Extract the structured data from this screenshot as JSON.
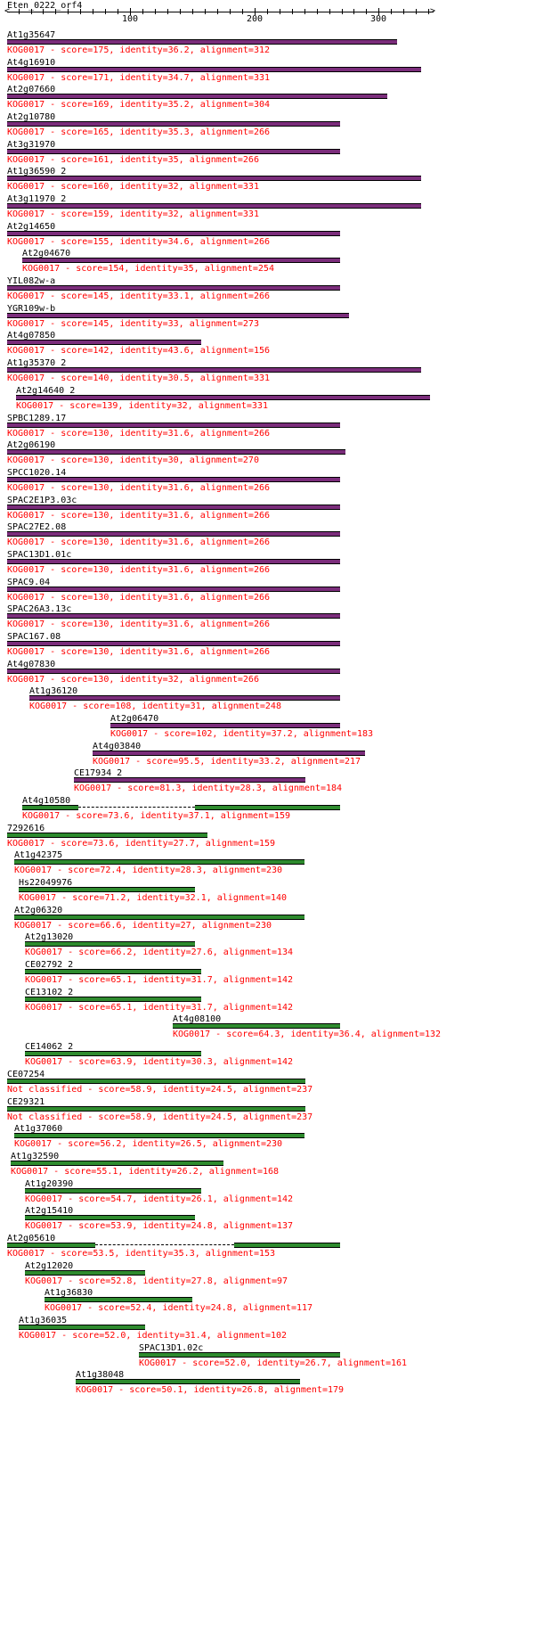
{
  "query": {
    "name": "Eten_0222_orf4",
    "axis_max": 344,
    "ticks": [
      100,
      200,
      300
    ]
  },
  "colors": {
    "purple": "#7b2d7b",
    "green": "#2e8b2e",
    "label": "#000000",
    "annotation": "#ff0000"
  },
  "hits": [
    {
      "name": "At1g35647",
      "annotation": "KOG0017 - score=175, identity=36.2, alignment=312",
      "start": 1,
      "end": 315,
      "color": "purple"
    },
    {
      "name": "At4g16910",
      "annotation": "KOG0017 - score=171, identity=34.7, alignment=331",
      "start": 1,
      "end": 334,
      "color": "purple"
    },
    {
      "name": "At2g07660",
      "annotation": "KOG0017 - score=169, identity=35.2, alignment=304",
      "start": 1,
      "end": 307,
      "color": "purple"
    },
    {
      "name": "At2g10780",
      "annotation": "KOG0017 - score=165, identity=35.3, alignment=266",
      "start": 1,
      "end": 269,
      "color": "purple"
    },
    {
      "name": "At3g31970",
      "annotation": "KOG0017 - score=161, identity=35, alignment=266",
      "start": 1,
      "end": 269,
      "color": "purple"
    },
    {
      "name": "At1g36590_2",
      "annotation": "KOG0017 - score=160, identity=32, alignment=331",
      "start": 1,
      "end": 334,
      "color": "purple"
    },
    {
      "name": "At3g11970_2",
      "annotation": "KOG0017 - score=159, identity=32, alignment=331",
      "start": 1,
      "end": 334,
      "color": "purple"
    },
    {
      "name": "At2g14650",
      "annotation": "KOG0017 - score=155, identity=34.6, alignment=266",
      "start": 1,
      "end": 269,
      "color": "purple"
    },
    {
      "name": "At2g04670",
      "annotation": "KOG0017 - score=154, identity=35, alignment=254",
      "start": 13,
      "end": 269,
      "color": "purple"
    },
    {
      "name": "YIL082w-a",
      "annotation": "KOG0017 - score=145, identity=33.1, alignment=266",
      "start": 1,
      "end": 269,
      "color": "purple"
    },
    {
      "name": "YGR109w-b",
      "annotation": "KOG0017 - score=145, identity=33, alignment=273",
      "start": 1,
      "end": 276,
      "color": "purple"
    },
    {
      "name": "At4g07850",
      "annotation": "KOG0017 - score=142, identity=43.6, alignment=156",
      "start": 1,
      "end": 157,
      "color": "purple"
    },
    {
      "name": "At1g35370_2",
      "annotation": "KOG0017 - score=140, identity=30.5, alignment=331",
      "start": 1,
      "end": 334,
      "color": "purple"
    },
    {
      "name": "At2g14640_2",
      "annotation": "KOG0017 - score=139, identity=32, alignment=331",
      "start": 8,
      "end": 341,
      "color": "purple"
    },
    {
      "name": "SPBC1289.17",
      "annotation": "KOG0017 - score=130, identity=31.6, alignment=266",
      "start": 1,
      "end": 269,
      "color": "purple"
    },
    {
      "name": "At2g06190",
      "annotation": "KOG0017 - score=130, identity=30, alignment=270",
      "start": 1,
      "end": 273,
      "color": "purple"
    },
    {
      "name": "SPCC1020.14",
      "annotation": "KOG0017 - score=130, identity=31.6, alignment=266",
      "start": 1,
      "end": 269,
      "color": "purple"
    },
    {
      "name": "SPAC2E1P3.03c",
      "annotation": "KOG0017 - score=130, identity=31.6, alignment=266",
      "start": 1,
      "end": 269,
      "color": "purple"
    },
    {
      "name": "SPAC27E2.08",
      "annotation": "KOG0017 - score=130, identity=31.6, alignment=266",
      "start": 1,
      "end": 269,
      "color": "purple"
    },
    {
      "name": "SPAC13D1.01c",
      "annotation": "KOG0017 - score=130, identity=31.6, alignment=266",
      "start": 1,
      "end": 269,
      "color": "purple"
    },
    {
      "name": "SPAC9.04",
      "annotation": "KOG0017 - score=130, identity=31.6, alignment=266",
      "start": 1,
      "end": 269,
      "color": "purple"
    },
    {
      "name": "SPAC26A3.13c",
      "annotation": "KOG0017 - score=130, identity=31.6, alignment=266",
      "start": 1,
      "end": 269,
      "color": "purple"
    },
    {
      "name": "SPAC167.08",
      "annotation": "KOG0017 - score=130, identity=31.6, alignment=266",
      "start": 1,
      "end": 269,
      "color": "purple"
    },
    {
      "name": "At4g07830",
      "annotation": "KOG0017 - score=130, identity=32, alignment=266",
      "start": 1,
      "end": 269,
      "color": "purple"
    },
    {
      "name": "At1g36120",
      "annotation": "KOG0017 - score=108, identity=31, alignment=248",
      "start": 19,
      "end": 269,
      "color": "purple"
    },
    {
      "name": "At2g06470",
      "annotation": "KOG0017 - score=102, identity=37.2, alignment=183",
      "start": 84,
      "end": 269,
      "color": "purple"
    },
    {
      "name": "At4g03840",
      "annotation": "KOG0017 - score=95.5, identity=33.2, alignment=217",
      "start": 70,
      "end": 289,
      "color": "purple"
    },
    {
      "name": "CE17934_2",
      "annotation": "KOG0017 - score=81.3, identity=28.3, alignment=184",
      "start": 55,
      "end": 241,
      "color": "purple"
    },
    {
      "name": "At4g10580",
      "annotation": "KOG0017 - score=73.6, identity=37.1, alignment=159",
      "start": 13,
      "end": 269,
      "gap": [
        58,
        152
      ],
      "color": "green"
    },
    {
      "name": "7292616",
      "annotation": "KOG0017 - score=73.6, identity=27.7, alignment=159",
      "start": 1,
      "end": 162,
      "color": "green"
    },
    {
      "name": "At1g42375",
      "annotation": "KOG0017 - score=72.4, identity=28.3, alignment=230",
      "start": 7,
      "end": 240,
      "color": "green"
    },
    {
      "name": "Hs22049976",
      "annotation": "KOG0017 - score=71.2, identity=32.1, alignment=140",
      "start": 10,
      "end": 152,
      "color": "green"
    },
    {
      "name": "At2g06320",
      "annotation": "KOG0017 - score=66.6, identity=27, alignment=230",
      "start": 7,
      "end": 240,
      "color": "green"
    },
    {
      "name": "At2g13020",
      "annotation": "KOG0017 - score=66.2, identity=27.6, alignment=134",
      "start": 15,
      "end": 152,
      "color": "green"
    },
    {
      "name": "CE02792_2",
      "annotation": "KOG0017 - score=65.1, identity=31.7, alignment=142",
      "start": 15,
      "end": 157,
      "color": "green"
    },
    {
      "name": "CE13102_2",
      "annotation": "KOG0017 - score=65.1, identity=31.7, alignment=142",
      "start": 15,
      "end": 157,
      "color": "green"
    },
    {
      "name": "At4g08100",
      "annotation": "KOG0017 - score=64.3, identity=36.4, alignment=132",
      "start": 134,
      "end": 269,
      "color": "green"
    },
    {
      "name": "CE14062_2",
      "annotation": "KOG0017 - score=63.9, identity=30.3, alignment=142",
      "start": 15,
      "end": 157,
      "color": "green"
    },
    {
      "name": "CE07254",
      "annotation": "Not classified - score=58.9, identity=24.5, alignment=237",
      "start": 1,
      "end": 241,
      "color": "green"
    },
    {
      "name": "CE29321",
      "annotation": "Not classified - score=58.9, identity=24.5, alignment=237",
      "start": 1,
      "end": 241,
      "color": "green"
    },
    {
      "name": "At1g37060",
      "annotation": "KOG0017 - score=56.2, identity=26.5, alignment=230",
      "start": 7,
      "end": 240,
      "color": "green"
    },
    {
      "name": "At1g32590",
      "annotation": "KOG0017 - score=55.1, identity=26.2, alignment=168",
      "start": 4,
      "end": 175,
      "color": "green"
    },
    {
      "name": "At1g20390",
      "annotation": "KOG0017 - score=54.7, identity=26.1, alignment=142",
      "start": 15,
      "end": 157,
      "color": "green"
    },
    {
      "name": "At2g15410",
      "annotation": "KOG0017 - score=53.9, identity=24.8, alignment=137",
      "start": 15,
      "end": 152,
      "color": "green"
    },
    {
      "name": "At2g05610",
      "annotation": "KOG0017 - score=53.5, identity=35.3, alignment=153",
      "start": 1,
      "end": 269,
      "gap": [
        72,
        184
      ],
      "color": "green"
    },
    {
      "name": "At2g12020",
      "annotation": "KOG0017 - score=52.8, identity=27.8, alignment=97",
      "start": 15,
      "end": 112,
      "color": "green"
    },
    {
      "name": "At1g36830",
      "annotation": "KOG0017 - score=52.4, identity=24.8, alignment=117",
      "start": 31,
      "end": 150,
      "color": "green"
    },
    {
      "name": "At1g36035",
      "annotation": "KOG0017 - score=52.0, identity=31.4, alignment=102",
      "start": 10,
      "end": 112,
      "color": "green"
    },
    {
      "name": "SPAC13D1.02c",
      "annotation": "KOG0017 - score=52.0, identity=26.7, alignment=161",
      "start": 107,
      "end": 269,
      "color": "green"
    },
    {
      "name": "At1g38048",
      "annotation": "KOG0017 - score=50.1, identity=26.8, alignment=179",
      "start": 56,
      "end": 237,
      "color": "green"
    }
  ]
}
